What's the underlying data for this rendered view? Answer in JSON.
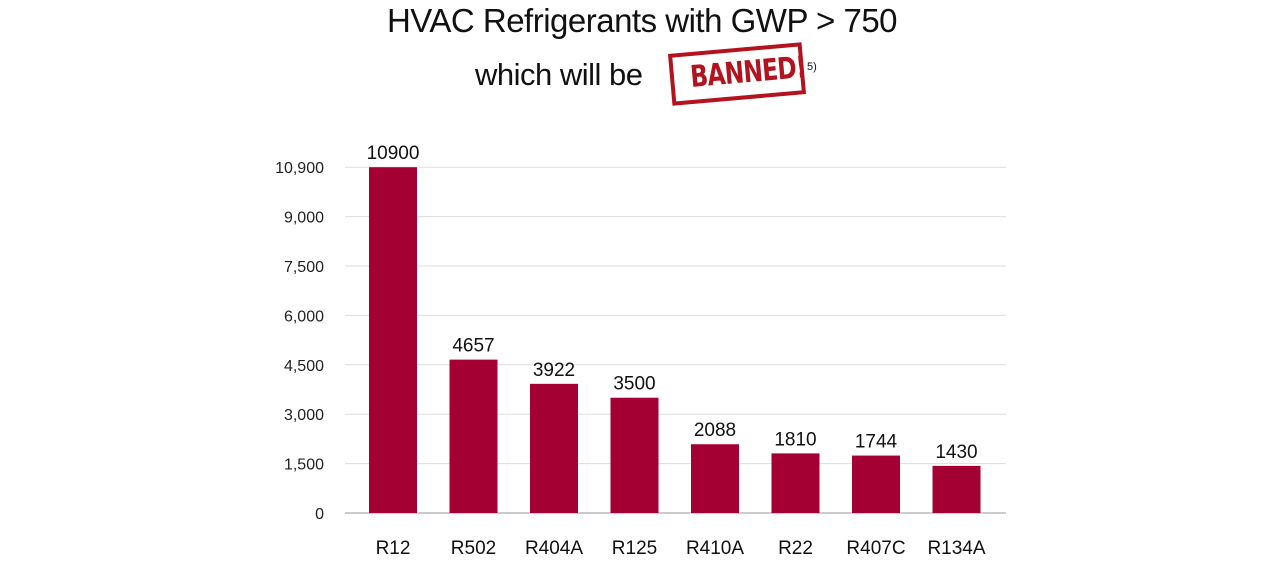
{
  "chart_data": {
    "type": "bar",
    "title": "HVAC Refrigerants with GWP > 750",
    "subtitle_prefix": "which will be",
    "stamp_text": "BANNED!",
    "footnote": "5)",
    "categories": [
      "R12",
      "R502",
      "R404A",
      "R125",
      "R410A",
      "R22",
      "R407C",
      "R134A"
    ],
    "values": [
      10900,
      4657,
      3922,
      3500,
      2088,
      1810,
      1744,
      1430
    ],
    "data_labels": [
      "10900",
      "4657",
      "3922",
      "3500",
      "2088",
      "1810",
      "1744",
      "1430"
    ],
    "y_ticks": [
      0,
      1500,
      3000,
      4500,
      6000,
      7500,
      9000,
      10900
    ],
    "y_tick_labels": [
      "0",
      "1,500",
      "3,000",
      "4,500",
      "6,000",
      "7,500",
      "9,000",
      "10,900"
    ],
    "ylim": [
      0,
      10900
    ],
    "grid": true,
    "bar_color": "#a50034",
    "stamp_color": "#b3121f"
  }
}
